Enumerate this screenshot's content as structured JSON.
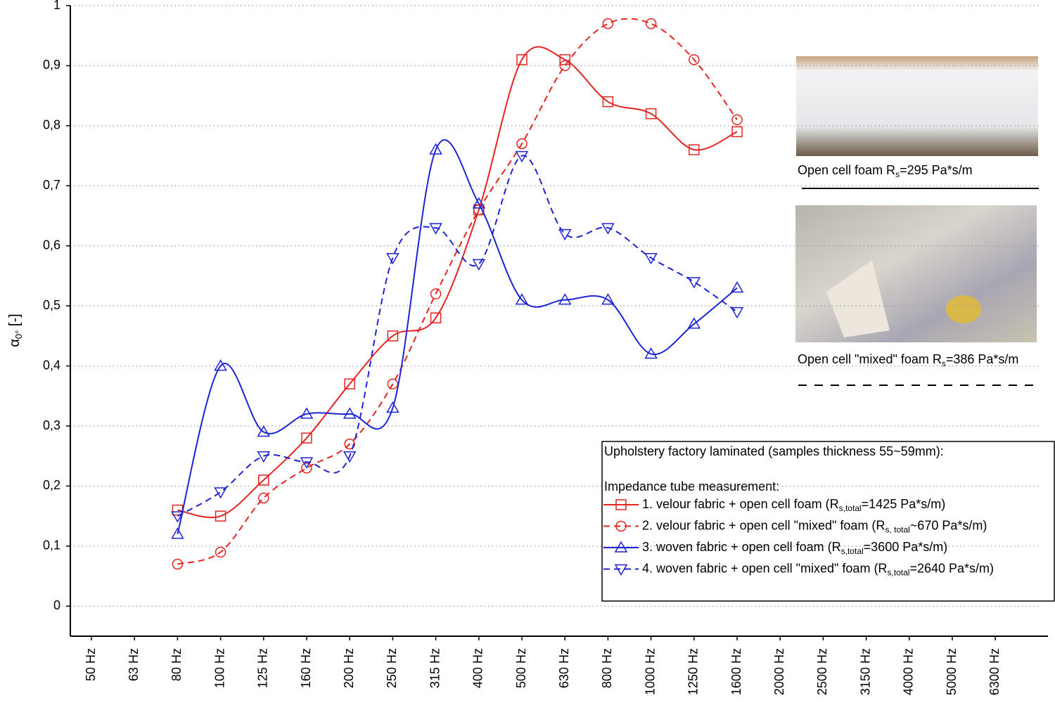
{
  "chart_data": {
    "type": "line",
    "ylabel": {
      "main": "α",
      "sub": "0°",
      "rest": " [-]"
    },
    "categories": [
      "50 Hz",
      "63 Hz",
      "80 Hz",
      "100 Hz",
      "125 Hz",
      "160 Hz",
      "200 Hz",
      "250 Hz",
      "315 Hz",
      "400 Hz",
      "500 Hz",
      "630 Hz",
      "800 Hz",
      "1000 Hz",
      "1250 Hz",
      "1600 Hz",
      "2000 Hz",
      "2500 Hz",
      "3150 Hz",
      "4000 Hz",
      "5000 Hz",
      "6300 Hz"
    ],
    "ylim": [
      -0.05,
      1
    ],
    "yticks": [
      0,
      {
        "value": 0.1,
        "label": "0,1"
      },
      {
        "value": 0.2,
        "label": "0,2"
      },
      {
        "value": 0.3,
        "label": "0,3"
      },
      {
        "value": 0.4,
        "label": "0,4"
      },
      {
        "value": 0.5,
        "label": "0,5"
      },
      {
        "value": 0.6,
        "label": "0,6"
      },
      {
        "value": 0.7,
        "label": "0,7"
      },
      {
        "value": 0.8,
        "label": "0,8"
      },
      {
        "value": 0.9,
        "label": "0,9"
      },
      1
    ],
    "grid": true,
    "legend": {
      "title": "Upholstery factory laminated (samples thickness 55~59mm):",
      "subtitle": "Impedance tube measurement:"
    },
    "series": [
      {
        "name": [
          "1. velour fabric + open cell foam (R",
          "s,total",
          "=1425 Pa*s/m)"
        ],
        "color": "#e52421",
        "dashed": false,
        "marker": "square",
        "values": [
          null,
          null,
          0.16,
          0.15,
          0.21,
          0.28,
          0.37,
          0.45,
          0.48,
          0.66,
          0.91,
          0.91,
          0.84,
          0.82,
          0.76,
          0.79,
          null,
          null,
          null,
          null,
          null,
          null
        ]
      },
      {
        "name": [
          "2. velour fabric + open cell \"mixed\" foam (R",
          "s, total",
          "~670 Pa*s/m)"
        ],
        "color": "#e52421",
        "dashed": true,
        "marker": "circle",
        "values": [
          null,
          null,
          0.07,
          0.09,
          0.18,
          0.23,
          0.27,
          0.37,
          0.52,
          0.66,
          0.77,
          0.9,
          0.97,
          0.97,
          0.91,
          0.81,
          null,
          null,
          null,
          null,
          null,
          null
        ]
      },
      {
        "name": [
          "3. woven fabric + open cell foam (R",
          "s,total",
          "=3600 Pa*s/m)"
        ],
        "color": "#1c24d4",
        "dashed": false,
        "marker": "triangle-up",
        "values": [
          null,
          null,
          0.12,
          0.4,
          0.29,
          0.32,
          0.32,
          0.33,
          0.76,
          0.67,
          0.51,
          0.51,
          0.51,
          0.42,
          0.47,
          0.53,
          null,
          null,
          null,
          null,
          null,
          null
        ]
      },
      {
        "name": [
          "4. woven fabric + open cell \"mixed\" foam (R",
          "s,total",
          "=2640 Pa*s/m)"
        ],
        "color": "#1c24d4",
        "dashed": true,
        "marker": "triangle-down",
        "values": [
          null,
          null,
          0.15,
          0.19,
          0.25,
          0.24,
          0.25,
          0.58,
          0.63,
          0.57,
          0.75,
          0.62,
          0.63,
          0.58,
          0.54,
          0.49,
          null,
          null,
          null,
          null,
          null,
          null
        ]
      }
    ],
    "annotations": [
      [
        "Open cell foam R",
        "s",
        "=295 Pa*s/m"
      ],
      [
        "Open cell \"mixed\" foam R",
        "s",
        "=386 Pa*s/m"
      ]
    ]
  }
}
